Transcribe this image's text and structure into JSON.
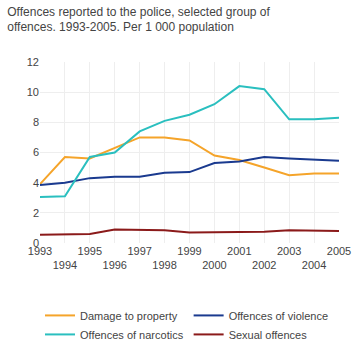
{
  "chart_data": {
    "type": "line",
    "title": "Offences reported to the police, selected group of\noffences. 1993-2005. Per 1 000 population",
    "x": [
      1993,
      1994,
      1995,
      1996,
      1997,
      1998,
      1999,
      2000,
      2001,
      2002,
      2003,
      2004,
      2005
    ],
    "series": [
      {
        "name": "Damage to property",
        "color": "#f5a42a",
        "values": [
          3.9,
          5.7,
          5.6,
          6.3,
          7.0,
          7.0,
          6.8,
          5.8,
          5.5,
          5.0,
          4.5,
          4.6,
          4.6
        ]
      },
      {
        "name": "Offences of violence",
        "color": "#1a3a8f",
        "values": [
          3.85,
          4.0,
          4.3,
          4.4,
          4.4,
          4.65,
          4.7,
          5.3,
          5.4,
          5.7,
          5.6,
          5.5,
          5.45
        ]
      },
      {
        "name": "Offences of narcotics",
        "color": "#2abfbf",
        "values": [
          3.05,
          3.1,
          5.7,
          6.0,
          7.4,
          8.1,
          8.5,
          9.2,
          10.4,
          10.2,
          8.2,
          8.2,
          8.3
        ]
      },
      {
        "name": "Sexual offences",
        "color": "#8b1a1a",
        "values": [
          0.55,
          0.55,
          0.6,
          0.9,
          0.85,
          0.85,
          0.7,
          0.7,
          0.75,
          0.75,
          0.85,
          0.85,
          0.8
        ]
      }
    ],
    "xlim": [
      1993,
      2005
    ],
    "xticks": [
      1993,
      1994,
      1995,
      1996,
      1997,
      1998,
      1999,
      2000,
      2001,
      2002,
      2003,
      2004,
      2005
    ],
    "ylim": [
      0,
      12
    ],
    "yticks": [
      0,
      2,
      4,
      6,
      8,
      10,
      12
    ],
    "grid": true,
    "legend": "bottom"
  }
}
